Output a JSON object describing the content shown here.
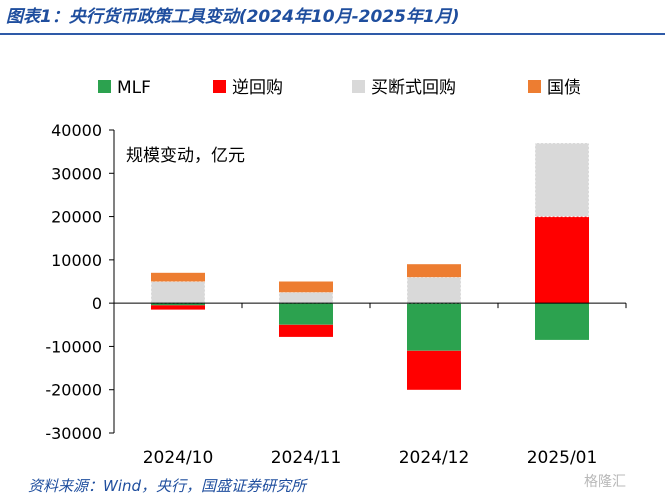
{
  "title": "图表1：央行货币政策工具变动(2024年10月-2025年1月)",
  "source": "资料来源：Wind，央行，国盛证券研究所",
  "watermark": "格隆汇",
  "colors": {
    "MLF": "#2ca24f",
    "逆回购": "#ff0000",
    "买断式回购": "#d9d9d9",
    "国债": "#ed7d31",
    "title": "#1f4e9e",
    "axis": "#000000"
  },
  "chart_data": {
    "type": "bar",
    "stacked": true,
    "unit_note": "规模变动，亿元",
    "categories": [
      "2024/10",
      "2024/11",
      "2024/12",
      "2025/01"
    ],
    "series": [
      {
        "name": "MLF",
        "values": [
          -500,
          -5000,
          -11000,
          -8500
        ]
      },
      {
        "name": "逆回购",
        "values": [
          -1000,
          -2800,
          -9000,
          20000
        ]
      },
      {
        "name": "买断式回购",
        "values": [
          5000,
          2500,
          6000,
          17000
        ]
      },
      {
        "name": "国债",
        "values": [
          2000,
          2500,
          3000,
          0
        ]
      }
    ],
    "yticks": [
      40000,
      30000,
      20000,
      10000,
      0,
      -10000,
      -20000,
      -30000
    ],
    "ylim": [
      -30000,
      40000
    ],
    "legend_position": "top",
    "grid": false
  }
}
